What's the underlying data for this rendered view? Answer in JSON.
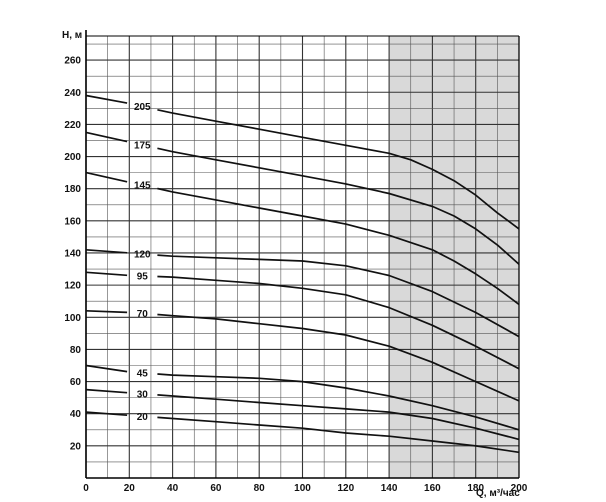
{
  "chart_data": {
    "type": "line",
    "xlabel": "Q, м³/час",
    "ylabel": "H, м",
    "xlim": [
      0,
      200
    ],
    "ylim": [
      0,
      275
    ],
    "x_ticks": [
      0,
      20,
      40,
      60,
      80,
      100,
      120,
      140,
      160,
      180,
      200
    ],
    "y_ticks": [
      20,
      40,
      60,
      80,
      100,
      120,
      140,
      160,
      180,
      200,
      220,
      240,
      260
    ],
    "grid": true,
    "shaded_range": {
      "x": [
        140,
        200
      ],
      "color": "#d9d9d9"
    },
    "series": [
      {
        "name": "205",
        "points": [
          [
            0,
            238
          ],
          [
            20,
            233
          ],
          [
            40,
            227
          ],
          [
            60,
            222
          ],
          [
            80,
            217
          ],
          [
            100,
            212
          ],
          [
            120,
            207
          ],
          [
            140,
            202
          ],
          [
            150,
            198
          ],
          [
            160,
            192
          ],
          [
            170,
            185
          ],
          [
            180,
            176
          ],
          [
            190,
            165
          ],
          [
            200,
            155
          ]
        ]
      },
      {
        "name": "175",
        "points": [
          [
            0,
            215
          ],
          [
            20,
            209
          ],
          [
            40,
            203
          ],
          [
            60,
            198
          ],
          [
            80,
            193
          ],
          [
            100,
            188
          ],
          [
            120,
            183
          ],
          [
            140,
            177
          ],
          [
            160,
            169
          ],
          [
            170,
            163
          ],
          [
            180,
            155
          ],
          [
            190,
            145
          ],
          [
            200,
            133
          ]
        ]
      },
      {
        "name": "145",
        "points": [
          [
            0,
            190
          ],
          [
            20,
            184
          ],
          [
            40,
            178
          ],
          [
            60,
            173
          ],
          [
            80,
            168
          ],
          [
            100,
            163
          ],
          [
            120,
            158
          ],
          [
            140,
            151
          ],
          [
            160,
            142
          ],
          [
            170,
            135
          ],
          [
            180,
            127
          ],
          [
            190,
            118
          ],
          [
            200,
            108
          ]
        ]
      },
      {
        "name": "120",
        "points": [
          [
            0,
            142
          ],
          [
            20,
            140
          ],
          [
            40,
            138
          ],
          [
            60,
            137
          ],
          [
            80,
            136
          ],
          [
            100,
            135
          ],
          [
            120,
            132
          ],
          [
            140,
            126
          ],
          [
            160,
            116
          ],
          [
            180,
            103
          ],
          [
            200,
            88
          ]
        ]
      },
      {
        "name": "95",
        "points": [
          [
            0,
            128
          ],
          [
            20,
            126
          ],
          [
            40,
            125
          ],
          [
            60,
            123
          ],
          [
            80,
            121
          ],
          [
            100,
            118
          ],
          [
            120,
            114
          ],
          [
            140,
            106
          ],
          [
            160,
            95
          ],
          [
            180,
            82
          ],
          [
            200,
            68
          ]
        ]
      },
      {
        "name": "70",
        "points": [
          [
            0,
            104
          ],
          [
            20,
            103
          ],
          [
            40,
            101
          ],
          [
            60,
            99
          ],
          [
            80,
            96
          ],
          [
            100,
            93
          ],
          [
            120,
            89
          ],
          [
            140,
            82
          ],
          [
            160,
            72
          ],
          [
            180,
            60
          ],
          [
            200,
            48
          ]
        ]
      },
      {
        "name": "45",
        "points": [
          [
            0,
            70
          ],
          [
            20,
            66
          ],
          [
            40,
            64
          ],
          [
            60,
            63
          ],
          [
            80,
            62
          ],
          [
            100,
            60
          ],
          [
            120,
            56
          ],
          [
            140,
            51
          ],
          [
            160,
            45
          ],
          [
            180,
            38
          ],
          [
            200,
            30
          ]
        ]
      },
      {
        "name": "30",
        "points": [
          [
            0,
            55
          ],
          [
            20,
            53
          ],
          [
            40,
            51
          ],
          [
            60,
            49
          ],
          [
            80,
            47
          ],
          [
            100,
            45
          ],
          [
            120,
            43
          ],
          [
            140,
            41
          ],
          [
            160,
            37
          ],
          [
            180,
            31
          ],
          [
            200,
            24
          ]
        ]
      },
      {
        "name": "20",
        "points": [
          [
            0,
            41
          ],
          [
            20,
            39
          ],
          [
            40,
            37
          ],
          [
            60,
            35
          ],
          [
            80,
            33
          ],
          [
            100,
            31
          ],
          [
            120,
            28
          ],
          [
            140,
            26
          ],
          [
            160,
            23
          ],
          [
            180,
            20
          ],
          [
            200,
            16
          ]
        ]
      }
    ]
  }
}
